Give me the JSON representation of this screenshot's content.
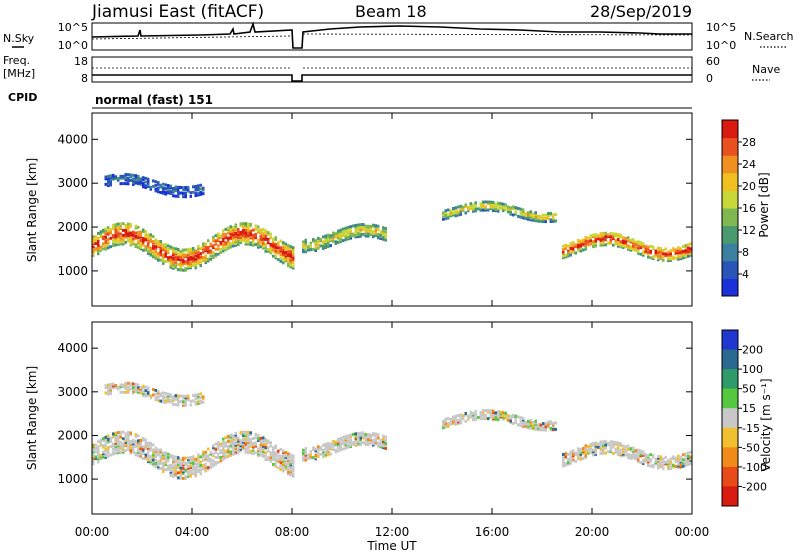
{
  "header": {
    "station": "Jiamusi East (fitACF)",
    "beam": "Beam 18",
    "date": "28/Sep/2019"
  },
  "panels": {
    "nsky": {
      "label": "N.Sky",
      "ticks": [
        "10^5",
        "10^0"
      ]
    },
    "nsearch": {
      "label": "N.Search",
      "ticks": [
        "10^5",
        "10^0"
      ]
    },
    "freq": {
      "label_top": "Freq.",
      "label_unit": "[MHz]",
      "ticks": [
        "18",
        "8"
      ]
    },
    "nave": {
      "label": "Nave",
      "ticks": [
        "60",
        "0"
      ]
    },
    "cpid": {
      "label": "CPID",
      "value": "normal (fast) 151"
    }
  },
  "chart_data": [
    {
      "type": "heatmap",
      "id": "power",
      "ylabel": "Slant Range [km]",
      "yticks": [
        1000,
        2000,
        3000,
        4000
      ],
      "ylim": [
        200,
        4600
      ],
      "xticks": [
        "00:00",
        "04:00",
        "08:00",
        "12:00",
        "16:00",
        "20:00",
        "00:00"
      ],
      "xlim_hours": [
        0,
        24
      ],
      "colorbar": {
        "label": "Power [dB]",
        "ticks": [
          "4",
          "8",
          "12",
          "16",
          "20",
          "24",
          "28"
        ],
        "colors": [
          "#1a30d8",
          "#2a55b8",
          "#3d7fa0",
          "#4a9a70",
          "#7fb850",
          "#c8d83a",
          "#f0c020",
          "#f09020",
          "#e85020",
          "#d81a10"
        ]
      },
      "echo_bands": [
        {
          "start_h": 0.0,
          "end_h": 8.1,
          "center_km": 1600,
          "width_km": 500,
          "level": "high"
        },
        {
          "start_h": 0.5,
          "end_h": 4.5,
          "center_km": 3000,
          "width_km": 250,
          "level": "low"
        },
        {
          "start_h": 8.4,
          "end_h": 11.8,
          "center_km": 1800,
          "width_km": 300,
          "level": "mid"
        },
        {
          "start_h": 14.0,
          "end_h": 18.6,
          "center_km": 2400,
          "width_km": 220,
          "level": "mid"
        },
        {
          "start_h": 18.8,
          "end_h": 24.0,
          "center_km": 1600,
          "width_km": 300,
          "level": "high"
        }
      ]
    },
    {
      "type": "heatmap",
      "id": "velocity",
      "ylabel": "Slant Range [km]",
      "yticks": [
        1000,
        2000,
        3000,
        4000
      ],
      "ylim": [
        200,
        4600
      ],
      "xticks": [
        "00:00",
        "04:00",
        "08:00",
        "12:00",
        "16:00",
        "20:00",
        "00:00"
      ],
      "xlim_hours": [
        0,
        24
      ],
      "xlabel": "Time UT",
      "colorbar": {
        "label": "Velocity [m s⁻¹]",
        "ticks": [
          "200",
          "100",
          "50",
          "15",
          "-15",
          "-50",
          "-100",
          "-200"
        ],
        "colors": [
          "#2038d0",
          "#2a6a90",
          "#2f9a6a",
          "#55c840",
          "#c8c8c8",
          "#f0c030",
          "#f08a18",
          "#e84a18",
          "#d81a10"
        ]
      }
    }
  ]
}
